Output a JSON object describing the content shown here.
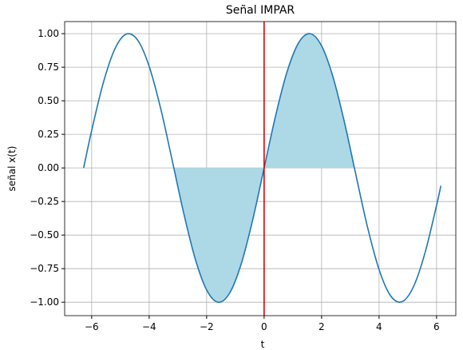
{
  "chart_data": {
    "type": "line",
    "title": "Señal IMPAR",
    "xlabel": "t",
    "ylabel": "señal x(t)",
    "series": [
      {
        "color": "#1f77b4",
        "x": [
          -6.28,
          -6.0,
          -5.6,
          -5.2,
          -4.8,
          -4.4,
          -4.0,
          -3.6,
          -3.2,
          -2.8,
          -2.4,
          -2.0,
          -1.6,
          -1.2,
          -0.8,
          -0.4,
          0,
          0.4,
          0.8,
          1.2,
          1.6,
          2.0,
          2.4,
          2.8,
          3.2,
          3.6,
          4.0,
          4.4,
          4.8,
          5.2,
          5.6,
          6.0,
          6.15
        ],
        "values": [
          0,
          0.279,
          0.631,
          0.883,
          0.996,
          0.952,
          0.757,
          0.443,
          0.058,
          -0.335,
          -0.675,
          -0.909,
          -1.0,
          -0.932,
          -0.717,
          -0.389,
          0,
          0.389,
          0.717,
          0.932,
          1.0,
          0.909,
          0.675,
          0.335,
          -0.058,
          -0.443,
          -0.757,
          -0.952,
          -0.996,
          -0.883,
          -0.631,
          -0.279,
          -0.133
        ]
      }
    ],
    "fill": {
      "color": "#add8e6",
      "x": [
        -3.14,
        -2.8,
        -2.4,
        -2.0,
        -1.6,
        -1.2,
        -0.8,
        -0.4,
        0,
        0.4,
        0.8,
        1.2,
        1.6,
        2.0,
        2.4,
        2.8,
        3.14
      ],
      "values": [
        0,
        -0.335,
        -0.675,
        -0.909,
        -1.0,
        -0.932,
        -0.717,
        -0.389,
        0,
        0.389,
        0.717,
        0.932,
        1.0,
        0.909,
        0.675,
        0.335,
        0
      ]
    },
    "vline": {
      "x": 0,
      "color": "#e00000"
    },
    "xlim": [
      -6.94,
      6.67
    ],
    "ylim": [
      -1.1,
      1.09
    ],
    "xticks": [
      {
        "value": -6,
        "label": "−6"
      },
      {
        "value": -4,
        "label": "−4"
      },
      {
        "value": -2,
        "label": "−2"
      },
      0,
      2,
      4,
      6
    ],
    "yticks": [
      {
        "value": 1,
        "label": "1.00"
      },
      {
        "value": 0.75,
        "label": "0.75"
      },
      {
        "value": 0.5,
        "label": "0.50"
      },
      {
        "value": 0.25,
        "label": "0.25"
      },
      {
        "value": 0,
        "label": "0.00"
      },
      {
        "value": -0.25,
        "label": "−0.25"
      },
      {
        "value": -0.5,
        "label": "−0.50"
      },
      {
        "value": -0.75,
        "label": "−0.75"
      },
      {
        "value": -1,
        "label": "−1.00"
      }
    ],
    "grid": true
  }
}
